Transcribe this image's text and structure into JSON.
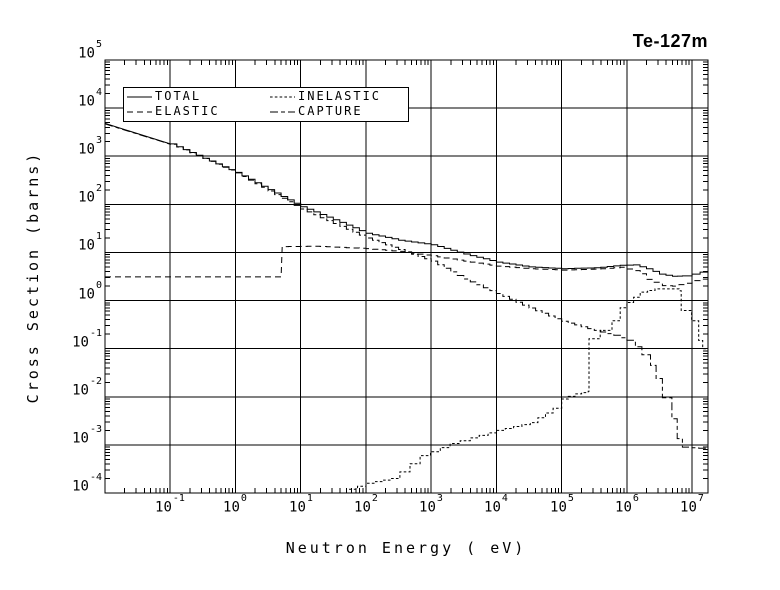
{
  "chart_data": {
    "type": "line",
    "title": "Te-127m",
    "xlabel": "Neutron Energy (  eV)",
    "ylabel": "Cross Section (barns)",
    "x_scale": "log",
    "y_scale": "log",
    "xlim": [
      0.01,
      17500000
    ],
    "ylim": [
      0.0001,
      100000
    ],
    "x_tick_exponents": [
      -1,
      0,
      1,
      2,
      3,
      4,
      5,
      6,
      7
    ],
    "y_tick_exponents": [
      5,
      4,
      3,
      2,
      1,
      0,
      -1,
      -2,
      -3,
      -4
    ],
    "tick_label_base": "10",
    "grid": true,
    "legend_position": "top-left-inside",
    "units": {
      "x": "eV",
      "y": "barns"
    },
    "series": [
      {
        "name": "TOTAL",
        "line_style": "solid",
        "stepped": true,
        "step_from_logx": -0.6,
        "step_width": 0.1,
        "points": [
          [
            0.01,
            4800
          ],
          [
            0.1,
            1800
          ],
          [
            1,
            460
          ],
          [
            10,
            89
          ],
          [
            31.6,
            48
          ],
          [
            100,
            25
          ],
          [
            316,
            18
          ],
          [
            1000,
            14.5
          ],
          [
            3160,
            9.3
          ],
          [
            10000,
            6.3
          ],
          [
            31600,
            5.0
          ],
          [
            100000,
            4.6
          ],
          [
            316000,
            4.8
          ],
          [
            790000,
            5.4
          ],
          [
            1260000,
            5.5
          ],
          [
            2000000,
            4.6
          ],
          [
            3160000,
            3.55
          ],
          [
            5000000,
            3.2
          ],
          [
            7100000,
            3.25
          ],
          [
            10000000,
            3.55
          ],
          [
            17500000,
            4.3
          ]
        ]
      },
      {
        "name": "ELASTIC",
        "line_style": "long-dash",
        "stepped": true,
        "step_from_logx": 0.8,
        "step_width": 0.1,
        "points": [
          [
            0.01,
            3.1
          ],
          [
            5.0,
            3.1
          ],
          [
            5.2,
            13.2
          ],
          [
            15.8,
            13.5
          ],
          [
            100,
            12
          ],
          [
            316,
            10.5
          ],
          [
            1000,
            8.5
          ],
          [
            3160,
            6.6
          ],
          [
            10000,
            5.2
          ],
          [
            31600,
            4.6
          ],
          [
            100000,
            4.3
          ],
          [
            316000,
            4.5
          ],
          [
            790000,
            4.9
          ],
          [
            1260000,
            4.2
          ],
          [
            1600000,
            3.6
          ],
          [
            2000000,
            2.75
          ],
          [
            2500000,
            2.4
          ],
          [
            3500000,
            2.05
          ],
          [
            5000000,
            2.0
          ],
          [
            7900000,
            2.3
          ],
          [
            10000000,
            2.6
          ],
          [
            17500000,
            3.0
          ]
        ]
      },
      {
        "name": "INELASTIC",
        "line_style": "short-dash",
        "stepped": true,
        "step_from_logx": -10,
        "step_width": 0.13,
        "points": [
          [
            55,
            0.00012
          ],
          [
            100,
            0.00016
          ],
          [
            234,
            0.0002
          ],
          [
            331,
            0.000275
          ],
          [
            676,
            0.0006
          ],
          [
            977,
            0.00072
          ],
          [
            1950,
            0.00107
          ],
          [
            3980,
            0.0014
          ],
          [
            10200,
            0.002
          ],
          [
            33000,
            0.0029
          ],
          [
            74000,
            0.0058
          ],
          [
            100000,
            0.009
          ],
          [
            160000,
            0.0115
          ],
          [
            255000,
            0.013
          ],
          [
            262000,
            0.16
          ],
          [
            390000,
            0.24
          ],
          [
            590000,
            0.38
          ],
          [
            790000,
            0.71
          ],
          [
            1000000,
            0.91
          ],
          [
            1600000,
            1.5
          ],
          [
            2700000,
            1.75
          ],
          [
            5500000,
            1.75
          ],
          [
            6300000,
            1.6
          ],
          [
            6800000,
            0.62
          ],
          [
            9800000,
            0.38
          ],
          [
            12600000,
            0.148
          ],
          [
            14500000,
            0.1
          ],
          [
            17500000,
            0.07
          ]
        ]
      },
      {
        "name": "CAPTURE",
        "line_style": "long-short-dash",
        "stepped": true,
        "step_from_logx": -0.6,
        "step_width": 0.1,
        "points": [
          [
            0.01,
            4700
          ],
          [
            0.1,
            1780
          ],
          [
            1,
            450
          ],
          [
            10,
            80
          ],
          [
            100,
            20
          ],
          [
            1000,
            6.6
          ],
          [
            3160,
            2.8
          ],
          [
            10000,
            1.4
          ],
          [
            31600,
            0.7
          ],
          [
            100000,
            0.37
          ],
          [
            316000,
            0.24
          ],
          [
            630000,
            0.19
          ],
          [
            1000000,
            0.15
          ],
          [
            1350000,
            0.11
          ],
          [
            1700000,
            0.075
          ],
          [
            2300000,
            0.045
          ],
          [
            2800000,
            0.024
          ],
          [
            3500000,
            0.0095
          ],
          [
            4900000,
            0.0035
          ],
          [
            5900000,
            0.00135
          ],
          [
            7100000,
            0.0009
          ],
          [
            12600000,
            0.00085
          ],
          [
            17500000,
            0.0013
          ]
        ]
      }
    ]
  }
}
